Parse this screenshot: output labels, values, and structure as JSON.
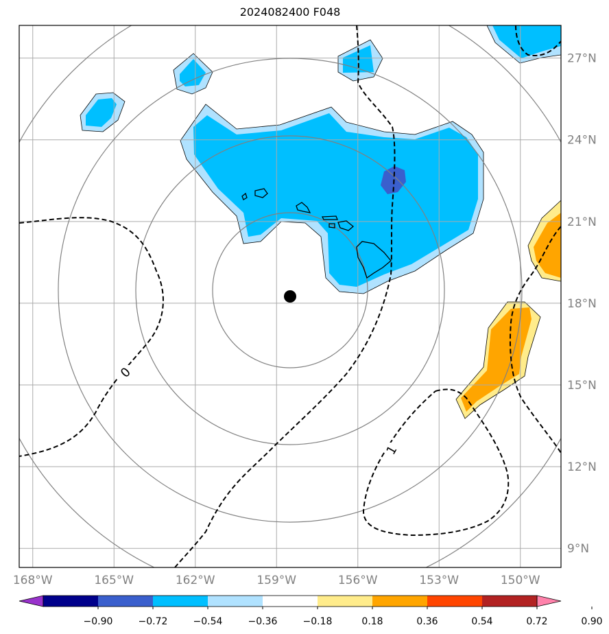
{
  "title": "2024082400 F048",
  "map": {
    "lon_labels": [
      "168°W",
      "165°W",
      "162°W",
      "159°W",
      "156°W",
      "153°W",
      "150°W"
    ],
    "lat_labels": [
      "27°N",
      "24°N",
      "21°N",
      "18°N",
      "15°N",
      "12°N",
      "9°N"
    ],
    "lon_values": [
      -168,
      -165,
      -162,
      -159,
      -156,
      -153,
      -150
    ],
    "lat_values": [
      27,
      24,
      21,
      18,
      15,
      12,
      9
    ],
    "extent": {
      "lon": [
        -168.5,
        -148.5
      ],
      "lat": [
        8.3,
        28.2
      ]
    },
    "center_marker": {
      "lon": -158.5,
      "lat": 18.2
    },
    "contour_labels": [
      "0",
      "1"
    ],
    "gridline_color": "#aaaaaa",
    "tick_label_color": "#808080"
  },
  "colorbar": {
    "ticks": [
      "−0.90",
      "−0.72",
      "−0.54",
      "−0.36",
      "−0.18",
      "0.18",
      "0.36",
      "0.54",
      "0.72",
      "0.90"
    ],
    "colors": [
      "#9932cc",
      "#00008b",
      "#3a5fcd",
      "#00bfff",
      "#b0e2ff",
      "#ffffff",
      "#ffec8b",
      "#ffa500",
      "#ff4500",
      "#b22222",
      "#ff82ab"
    ]
  },
  "fill_colors": {
    "light_blue": "#b0e2ff",
    "blue": "#00bfff",
    "dark_blue": "#3a5fcd",
    "light_yellow": "#ffec8b",
    "orange": "#ffa500"
  }
}
